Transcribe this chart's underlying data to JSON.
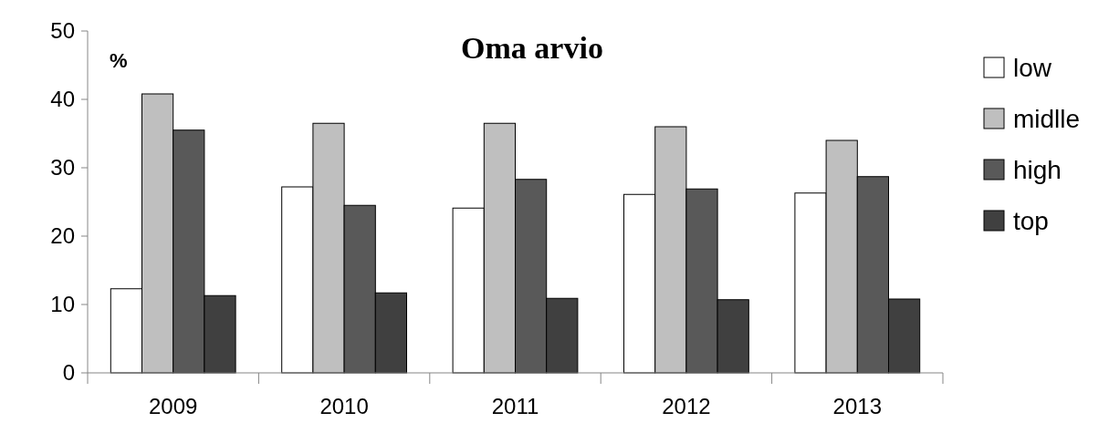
{
  "chart_data": {
    "type": "bar",
    "title": "Oma arvio",
    "annotations": [
      "%"
    ],
    "categories": [
      "2009",
      "2010",
      "2011",
      "2012",
      "2013"
    ],
    "series": [
      {
        "name": "low",
        "color": "#ffffff",
        "values": [
          12.3,
          27.2,
          24.1,
          26.1,
          26.3
        ]
      },
      {
        "name": "midlle",
        "color": "#bfbfbf",
        "values": [
          40.8,
          36.5,
          36.5,
          36.0,
          34.0
        ]
      },
      {
        "name": "high",
        "color": "#595959",
        "values": [
          35.5,
          24.5,
          28.3,
          26.9,
          28.7
        ]
      },
      {
        "name": "top",
        "color": "#404040",
        "values": [
          11.3,
          11.7,
          10.9,
          10.7,
          10.8
        ]
      }
    ],
    "ylim": [
      0,
      50
    ],
    "yticks": [
      0,
      10,
      20,
      30,
      40,
      50
    ],
    "grid": false,
    "legend": "right"
  }
}
